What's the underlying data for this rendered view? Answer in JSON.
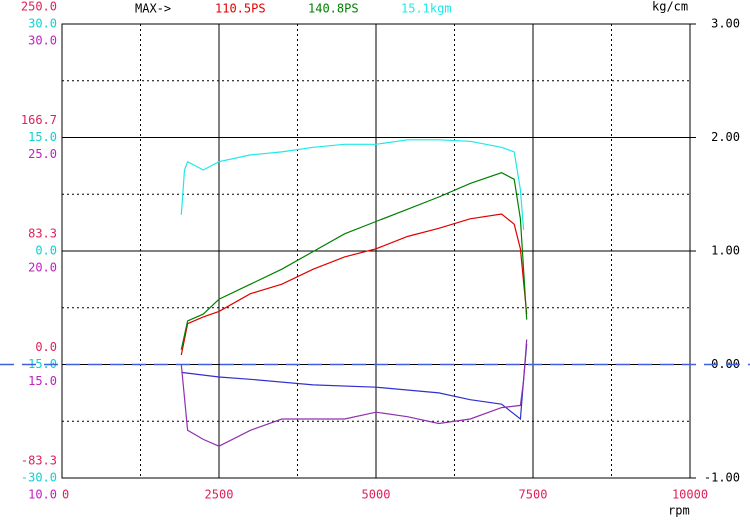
{
  "chart_data": {
    "type": "line",
    "header": "MAX->",
    "y2_unit": "kg/cm",
    "x_unit": "rpm",
    "xlim": [
      0,
      10000
    ],
    "xticks": [
      0,
      2500,
      5000,
      7500,
      10000
    ],
    "xgrid_minor": [
      1250,
      3750,
      6250,
      8750
    ],
    "axes": {
      "ps": {
        "color": "#e0205a",
        "ylim": [
          -83.3,
          250
        ],
        "yticks": [
          {
            "value": 250,
            "label": "250.0"
          },
          166.7,
          83.3,
          {
            "value": 0,
            "label": "0.0"
          },
          -83.3
        ]
      },
      "kgm": {
        "color": "#10d0d0",
        "ylim": [
          -30,
          30
        ],
        "yticks": [
          {
            "value": 30,
            "label": "30.0"
          },
          {
            "value": 15,
            "label": "15.0"
          },
          {
            "value": 0,
            "label": "0.0"
          },
          {
            "value": -15,
            "label": "-15.0"
          },
          {
            "value": -30,
            "label": "-30.0"
          }
        ]
      },
      "aux": {
        "color": "#c020c0",
        "ylim": [
          10,
          30
        ],
        "yticks": [
          {
            "value": 30,
            "label": "30.0"
          },
          {
            "value": 25,
            "label": "25.0"
          },
          {
            "value": 20,
            "label": "20.0"
          },
          {
            "value": 15,
            "label": "15.0"
          },
          {
            "value": 10,
            "label": "10.0"
          }
        ]
      },
      "y2": {
        "color": "#000000",
        "ylim": [
          -1,
          3
        ],
        "yticks": [
          {
            "value": 3,
            "label": "3.00"
          },
          {
            "value": 2,
            "label": "2.00"
          },
          {
            "value": 1,
            "label": "1.00"
          },
          {
            "value": 0,
            "label": "0.00"
          },
          {
            "value": -1,
            "label": "-1.00"
          }
        ],
        "grid_minor": [
          2.5,
          1.5,
          0.5,
          -0.5
        ]
      }
    },
    "y2_reference": 0,
    "series": [
      {
        "axis": "ps",
        "color": "#e00000",
        "max_label": "110.5PS",
        "x": [
          1900,
          2000,
          2250,
          2500,
          3000,
          3500,
          4000,
          4500,
          5000,
          5500,
          6000,
          6500,
          7000,
          7200,
          7300,
          7400
        ],
        "values": [
          7,
          30,
          35,
          39,
          52,
          59,
          70,
          79,
          85,
          94,
          100,
          107,
          110.5,
          103,
          85,
          37
        ]
      },
      {
        "axis": "ps",
        "color": "#008000",
        "max_label": "140.8PS",
        "x": [
          1900,
          2000,
          2250,
          2500,
          3000,
          3500,
          4000,
          4500,
          5000,
          5500,
          6000,
          6500,
          7000,
          7200,
          7300,
          7400
        ],
        "values": [
          11,
          32,
          37,
          48,
          59,
          70,
          83,
          96,
          105,
          114,
          123,
          133,
          140.8,
          136,
          107,
          33
        ]
      },
      {
        "axis": "kgm",
        "color": "#20e8e8",
        "max_label": "15.1kgm",
        "x": [
          1900,
          1950,
          2000,
          2250,
          2500,
          3000,
          3500,
          4000,
          4500,
          5000,
          5500,
          6000,
          6500,
          7000,
          7200,
          7300,
          7350
        ],
        "values": [
          4.8,
          10.7,
          11.8,
          10.7,
          11.8,
          12.7,
          13.1,
          13.7,
          14.1,
          14.1,
          14.7,
          14.7,
          14.5,
          13.7,
          13.1,
          8.1,
          2.8
        ]
      },
      {
        "axis": "y2",
        "color": "#3030d0",
        "x": [
          1900,
          2500,
          3000,
          4000,
          5000,
          6000,
          6500,
          7000,
          7300,
          7350,
          7400
        ],
        "values": [
          -0.07,
          -0.11,
          -0.13,
          -0.18,
          -0.2,
          -0.25,
          -0.31,
          -0.35,
          -0.48,
          -0.13,
          0.18
        ]
      },
      {
        "axis": "aux",
        "color": "#9030b0",
        "x": [
          1900,
          2000,
          2250,
          2500,
          3000,
          3500,
          4000,
          4500,
          5000,
          5500,
          6000,
          6500,
          7000,
          7300,
          7350,
          7400
        ],
        "values": [
          15,
          12.1,
          11.7,
          11.4,
          12.1,
          12.6,
          12.6,
          12.6,
          12.9,
          12.7,
          12.4,
          12.6,
          13.1,
          13.2,
          14.3,
          16.1
        ]
      }
    ]
  }
}
